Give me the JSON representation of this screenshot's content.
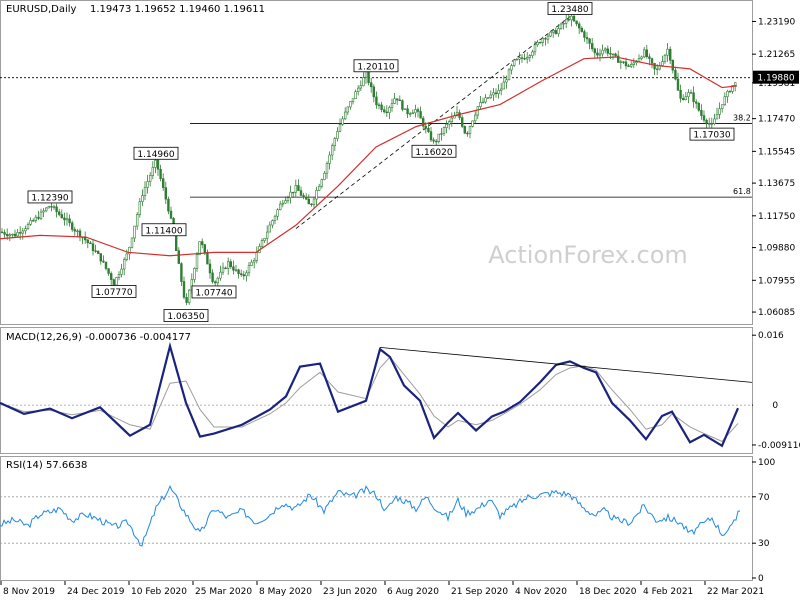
{
  "header": {
    "symbol": "EURUSD,Daily",
    "ohlc": "1.19473 1.19652 1.19460 1.19611"
  },
  "watermark": "ActionForex.com",
  "colors": {
    "candle": "#2e7d32",
    "ma": "#d32f2f",
    "macd": "#1a237e",
    "signal": "#9e9e9e",
    "rsi": "#1e88e5",
    "trend": "#000000",
    "level": "#000000",
    "grid": "#9e9e9e",
    "price_box": "#000000"
  },
  "chart_data": [
    {
      "type": "candlestick",
      "panel": "price",
      "series": [
        {
          "name": "EURUSD",
          "x": [
            0,
            14,
            28,
            40,
            50,
            58,
            66,
            72,
            86,
            100,
            114,
            128,
            142,
            156,
            170,
            186,
            200,
            214,
            228,
            242,
            256,
            270,
            282,
            296,
            310,
            324,
            338,
            352,
            366,
            376,
            386,
            396,
            406,
            416,
            426,
            434,
            448,
            458,
            466,
            478,
            490,
            500,
            514,
            528,
            542,
            556,
            570,
            584,
            596,
            604,
            616,
            630,
            644,
            656,
            668,
            680,
            690,
            702,
            712,
            722,
            732,
            737
          ],
          "y": [
            1.108,
            1.106,
            1.112,
            1.118,
            1.1239,
            1.119,
            1.115,
            1.111,
            1.103,
            1.093,
            1.0777,
            1.096,
            1.13,
            1.1496,
            1.118,
            1.0635,
            1.104,
            1.0774,
            1.09,
            1.081,
            1.094,
            1.112,
            1.126,
            1.134,
            1.123,
            1.143,
            1.169,
            1.186,
            1.2011,
            1.184,
            1.179,
            1.188,
            1.178,
            1.18,
            1.168,
            1.1602,
            1.172,
            1.178,
            1.165,
            1.182,
            1.188,
            1.191,
            1.208,
            1.212,
            1.222,
            1.226,
            1.2348,
            1.224,
            1.212,
            1.216,
            1.21,
            1.205,
            1.214,
            1.202,
            1.216,
            1.186,
            1.19,
            1.176,
            1.1703,
            1.184,
            1.194,
            1.1961
          ]
        }
      ],
      "ma_series": {
        "name": "",
        "x": [
          0,
          40,
          86,
          128,
          170,
          214,
          256,
          296,
          338,
          376,
          416,
          458,
          500,
          542,
          584,
          616,
          656,
          690,
          722,
          737
        ],
        "y": [
          1.104,
          1.106,
          1.105,
          1.096,
          1.094,
          1.096,
          1.096,
          1.112,
          1.135,
          1.158,
          1.17,
          1.177,
          1.183,
          1.197,
          1.21,
          1.211,
          1.206,
          1.204,
          1.193,
          1.194
        ]
      },
      "labels": [
        {
          "text": "1.12390",
          "x": 50,
          "y": 1.1239
        },
        {
          "text": "1.07770",
          "x": 114,
          "y": 1.0777
        },
        {
          "text": "1.14960",
          "x": 156,
          "y": 1.1496
        },
        {
          "text": "1.11400",
          "x": 164,
          "y": 1.114
        },
        {
          "text": "1.06350",
          "x": 186,
          "y": 1.0635
        },
        {
          "text": "1.07740",
          "x": 214,
          "y": 1.0774
        },
        {
          "text": "1.20110",
          "x": 376,
          "y": 1.2011
        },
        {
          "text": "1.16020",
          "x": 434,
          "y": 1.1602
        },
        {
          "text": "1.23480",
          "x": 570,
          "y": 1.2348
        },
        {
          "text": "1.17030",
          "x": 712,
          "y": 1.1703
        }
      ],
      "horizontal_lines": [
        {
          "label": "",
          "y": 1.1988,
          "style": "dotted"
        },
        {
          "label": "38.2",
          "y": 1.1718,
          "style": "solid"
        },
        {
          "label": "61.8",
          "y": 1.1285,
          "style": "solid"
        }
      ],
      "trendlines": [
        {
          "x1": 296,
          "y1": 1.11,
          "x2": 570,
          "y2": 1.2348
        }
      ],
      "yaxis_ticks": [
        "1.23190",
        "1.21265",
        "1.19581",
        "1.17470",
        "1.15545",
        "1.13675",
        "1.11750",
        "1.09880",
        "1.07955",
        "1.06085"
      ],
      "yaxis_values": [
        1.2319,
        1.21265,
        1.19581,
        1.1747,
        1.15545,
        1.13675,
        1.1175,
        1.0988,
        1.07955,
        1.06085
      ],
      "current_price": "1.19880",
      "ylim": [
        1.055,
        1.241
      ],
      "xlabel": "",
      "ylabel": ""
    },
    {
      "type": "line",
      "panel": "macd",
      "title": "MACD(12,26,9) -0.000736 -0.004177",
      "series": [
        {
          "name": "MACD",
          "x": [
            0,
            24,
            50,
            72,
            100,
            130,
            150,
            170,
            186,
            200,
            214,
            242,
            270,
            286,
            300,
            320,
            338,
            366,
            380,
            390,
            404,
            420,
            434,
            448,
            458,
            476,
            492,
            504,
            520,
            540,
            556,
            570,
            584,
            596,
            612,
            630,
            646,
            662,
            672,
            690,
            704,
            722,
            738
          ],
          "y": [
            0.0005,
            -0.002,
            -0.0008,
            -0.003,
            -0.0005,
            -0.007,
            -0.0045,
            0.0135,
            0.0005,
            -0.0072,
            -0.0065,
            -0.0045,
            -0.001,
            0.002,
            0.0088,
            0.0095,
            -0.0015,
            0.001,
            0.0128,
            0.011,
            0.0045,
            0.001,
            -0.0075,
            -0.004,
            -0.0018,
            -0.0058,
            -0.0026,
            -0.0015,
            0.0007,
            0.0052,
            0.0092,
            0.01,
            0.0085,
            0.0075,
            0.0005,
            -0.0035,
            -0.0078,
            -0.0025,
            -0.0015,
            -0.0085,
            -0.0068,
            -0.0093,
            -0.0007
          ]
        },
        {
          "name": "Signal",
          "x": [
            0,
            24,
            50,
            72,
            100,
            130,
            150,
            170,
            186,
            200,
            214,
            242,
            270,
            286,
            300,
            320,
            338,
            366,
            380,
            390,
            404,
            420,
            434,
            448,
            458,
            476,
            492,
            504,
            520,
            540,
            556,
            570,
            584,
            596,
            612,
            630,
            646,
            662,
            672,
            690,
            704,
            722,
            738
          ],
          "y": [
            0.0005,
            -0.0015,
            -0.0012,
            -0.0022,
            -0.0012,
            -0.0045,
            -0.0055,
            0.005,
            0.0055,
            -0.001,
            -0.005,
            -0.005,
            -0.002,
            0.0005,
            0.004,
            0.0075,
            0.003,
            0.0015,
            0.0085,
            0.011,
            0.007,
            0.0025,
            -0.0025,
            -0.005,
            -0.0035,
            -0.0045,
            -0.0035,
            -0.002,
            0.0002,
            0.0035,
            0.007,
            0.0085,
            0.009,
            0.008,
            0.0035,
            -0.001,
            -0.0055,
            -0.0045,
            -0.002,
            -0.005,
            -0.0065,
            -0.0083,
            -0.0042
          ]
        }
      ],
      "trendlines": [
        {
          "x1": 380,
          "y1": 0.0132,
          "x2": 752,
          "y2": 0.0052
        }
      ],
      "yaxis_ticks": [
        "0.016",
        "0.00",
        "-0.009116"
      ],
      "yaxis_values": [
        0.016,
        0.0,
        -0.009116
      ],
      "ylim": [
        -0.0105,
        0.0165
      ],
      "xlabel": "",
      "ylabel": ""
    },
    {
      "type": "line",
      "panel": "rsi",
      "title": "RSI(14) 57.6638",
      "series": [
        {
          "name": "RSI(14)",
          "x": [
            0,
            14,
            28,
            40,
            50,
            60,
            72,
            86,
            100,
            114,
            128,
            142,
            156,
            170,
            186,
            200,
            214,
            228,
            242,
            256,
            270,
            282,
            296,
            310,
            324,
            338,
            352,
            366,
            376,
            386,
            396,
            406,
            416,
            426,
            434,
            448,
            458,
            466,
            478,
            490,
            500,
            514,
            528,
            542,
            556,
            570,
            584,
            596,
            604,
            616,
            630,
            644,
            656,
            668,
            680,
            690,
            702,
            712,
            722,
            732,
            740
          ],
          "y": [
            46,
            50,
            45,
            55,
            57,
            60,
            50,
            55,
            50,
            44,
            48,
            28,
            60,
            78,
            55,
            38,
            60,
            52,
            58,
            48,
            55,
            65,
            60,
            72,
            58,
            74,
            70,
            76,
            72,
            58,
            70,
            66,
            60,
            70,
            62,
            52,
            67,
            56,
            60,
            68,
            54,
            62,
            70,
            72,
            74,
            72,
            60,
            54,
            58,
            50,
            48,
            62,
            50,
            52,
            48,
            38,
            46,
            52,
            38,
            44,
            57.66
          ]
        }
      ],
      "reference_lines": [
        30,
        70
      ],
      "yaxis_ticks": [
        "100",
        "70",
        "30",
        "0"
      ],
      "yaxis_values": [
        100,
        70,
        30,
        0
      ],
      "ylim": [
        0,
        100
      ],
      "xlabel": "",
      "ylabel": ""
    }
  ],
  "xaxis": {
    "ticks": [
      "8 Nov 2019",
      "24 Dec 2019",
      "10 Feb 2020",
      "25 Mar 2020",
      "8 May 2020",
      "23 Jun 2020",
      "6 Aug 2020",
      "21 Sep 2020",
      "4 Nov 2020",
      "18 Dec 2020",
      "4 Feb 2021",
      "22 Mar 2021"
    ],
    "tick_x": [
      0,
      64,
      128,
      192,
      256,
      320,
      384,
      448,
      512,
      576,
      640,
      704
    ]
  }
}
